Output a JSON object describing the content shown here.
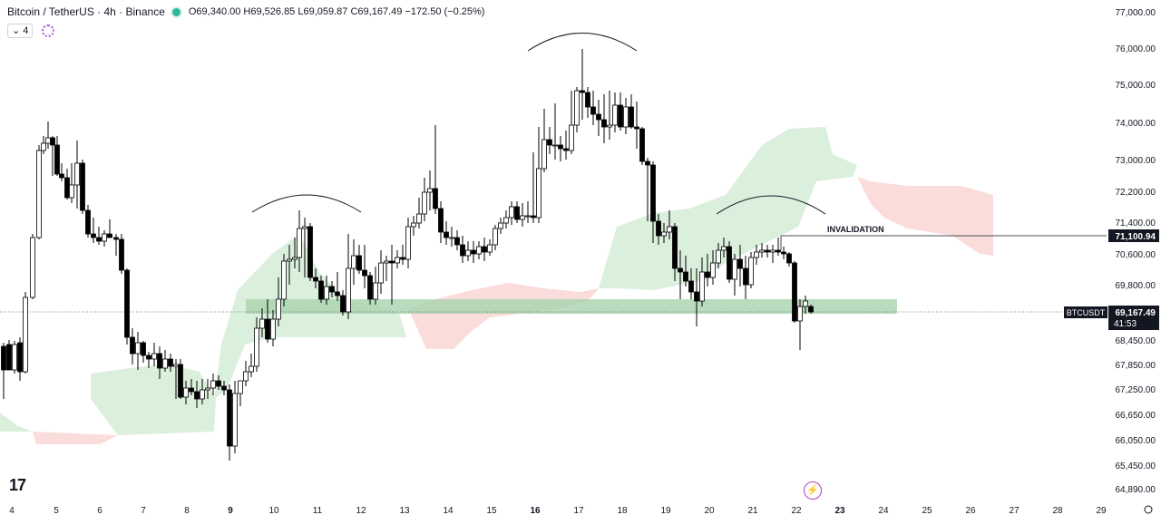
{
  "header": {
    "symbol": "Bitcoin / TetherUS · 4h · Binance",
    "ohlc_text": "O69,340.00 H69,526.85 L69,059.87 C69,167.49 −172.50 (−0.25%)"
  },
  "indicator_toggle": {
    "label": "4"
  },
  "invalidation_label": "INVALIDATION",
  "price_tags": {
    "invalidation": "71,100.94",
    "current_symbol": "BTCUSDT",
    "current_price": "69,167.49",
    "countdown": "41:53"
  },
  "y_axis_labels": [
    "77,000.00",
    "76,000.00",
    "75,000.00",
    "74,000.00",
    "73,000.00",
    "72,200.00",
    "71,400.00",
    "70,600.00",
    "69,800.00",
    "68,450.00",
    "67,850.00",
    "67,250.00",
    "66,650.00",
    "66,050.00",
    "65,450.00",
    "64,890.00"
  ],
  "x_axis_labels": [
    "4",
    "5",
    "6",
    "7",
    "8",
    "9",
    "10",
    "11",
    "12",
    "13",
    "14",
    "15",
    "16",
    "17",
    "18",
    "19",
    "20",
    "21",
    "22",
    "23",
    "24",
    "25",
    "26",
    "27",
    "28",
    "29"
  ],
  "x_axis_bold": [
    "9",
    "16",
    "23"
  ],
  "colors": {
    "up_candle": "#ffffff",
    "down_candle": "#000000",
    "cloud_bull": "#cfe9d2",
    "cloud_bear": "#f9d4d1",
    "support_zone": "#a9d3ae",
    "background": "#ffffff"
  },
  "icons": {
    "logo": "tradingview-logo-icon",
    "flash": "lightning-icon",
    "settings": "gear-icon"
  }
}
